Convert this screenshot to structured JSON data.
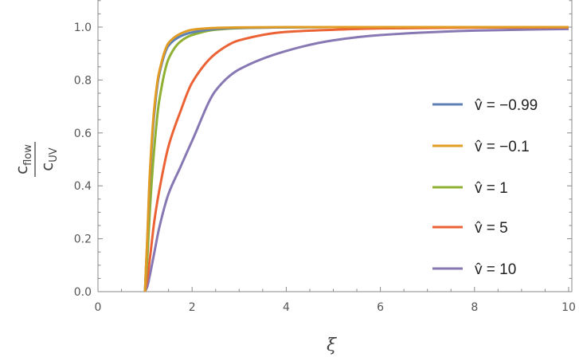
{
  "chart_data": {
    "type": "line",
    "title": "",
    "xlabel": "ξ",
    "ylabel": {
      "numerator": "c",
      "numerator_sub": "flow",
      "denominator": "c",
      "denominator_sub": "UV"
    },
    "xlim": [
      0,
      10
    ],
    "ylim": [
      0,
      1.1
    ],
    "xticks": [
      "0",
      "2",
      "4",
      "6",
      "8",
      "10"
    ],
    "yticks": [
      "0.0",
      "0.2",
      "0.4",
      "0.6",
      "0.8",
      "1.0"
    ],
    "grid": false,
    "legend_placement": "right",
    "x": [
      1,
      1.05,
      1.1,
      1.2,
      1.3,
      1.5,
      1.75,
      2,
      2.5,
      3,
      4,
      5,
      6,
      8,
      10
    ],
    "series": [
      {
        "name": "v̂ = −0.99",
        "color": "#5E81B5",
        "values": [
          0,
          0.2,
          0.42,
          0.68,
          0.82,
          0.93,
          0.965,
          0.98,
          0.993,
          0.997,
          0.999,
          1,
          1,
          1,
          1
        ]
      },
      {
        "name": "v̂ = −0.1",
        "color": "#E19C24",
        "values": [
          0,
          0.21,
          0.44,
          0.7,
          0.83,
          0.94,
          0.975,
          0.99,
          0.997,
          0.999,
          1,
          1,
          1,
          1,
          1
        ]
      },
      {
        "name": "v̂ = 1",
        "color": "#8FB032",
        "values": [
          0,
          0.13,
          0.3,
          0.55,
          0.72,
          0.88,
          0.945,
          0.97,
          0.99,
          0.996,
          0.999,
          1,
          1,
          1,
          1
        ]
      },
      {
        "name": "v̂ = 5",
        "color": "#EB6235",
        "values": [
          0,
          0.05,
          0.12,
          0.27,
          0.38,
          0.55,
          0.68,
          0.79,
          0.9,
          0.95,
          0.982,
          0.99,
          0.995,
          0.998,
          0.999
        ]
      },
      {
        "name": "v̂ = 10",
        "color": "#8778B3",
        "values": [
          0,
          0.02,
          0.06,
          0.15,
          0.24,
          0.37,
          0.47,
          0.57,
          0.76,
          0.84,
          0.91,
          0.95,
          0.97,
          0.987,
          0.993
        ]
      }
    ]
  }
}
